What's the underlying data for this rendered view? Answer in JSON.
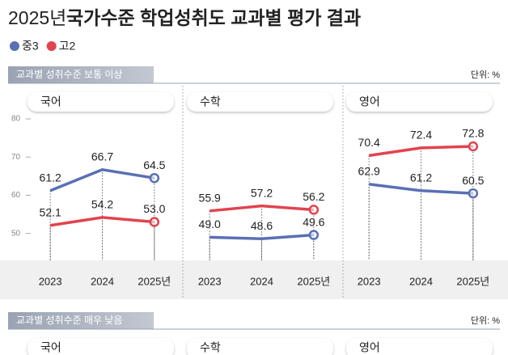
{
  "title_year": "2025년",
  "title": "국가수준 학업성취도 교과별 평가 결과",
  "sections": [
    {
      "title": "교과별 성취수준 보통 이상",
      "unit": "단위: %"
    },
    {
      "title": "교과별 성취수준 매우 낮음",
      "unit": "단위: %"
    }
  ],
  "lower_panels": [
    "국어",
    "수학",
    "영어"
  ],
  "chart_data": [
    {
      "type": "line",
      "title": "국어",
      "categories": [
        "2023",
        "2024",
        "2025년"
      ],
      "ylim": [
        44,
        80
      ],
      "yticks": [
        50,
        60,
        70,
        80
      ],
      "series": [
        {
          "name": "중3",
          "color": "#5a70b4",
          "values": [
            61.2,
            66.7,
            64.5
          ],
          "value_labels": [
            "61.2",
            "66.7",
            "64.5"
          ]
        },
        {
          "name": "고2",
          "color": "#e2434f",
          "values": [
            52.1,
            54.2,
            53
          ],
          "value_labels": [
            "52.1",
            "54.2",
            "53.0"
          ]
        }
      ]
    },
    {
      "type": "line",
      "title": "수학",
      "categories": [
        "2023",
        "2024",
        "2025년"
      ],
      "ylim": [
        44,
        80
      ],
      "series": [
        {
          "name": "중3",
          "color": "#5a70b4",
          "values": [
            49,
            48.6,
            49.6
          ],
          "value_labels": [
            "49.0",
            "48.6",
            "49.6"
          ]
        },
        {
          "name": "고2",
          "color": "#e2434f",
          "values": [
            55.9,
            57.2,
            56.2
          ],
          "value_labels": [
            "55.9",
            "57.2",
            "56.2"
          ]
        }
      ]
    },
    {
      "type": "line",
      "title": "영어",
      "categories": [
        "2023",
        "2024",
        "2025년"
      ],
      "ylim": [
        44,
        80
      ],
      "series": [
        {
          "name": "중3",
          "color": "#5a70b4",
          "values": [
            62.9,
            61.2,
            60.5
          ],
          "value_labels": [
            "62.9",
            "61.2",
            "60.5"
          ]
        },
        {
          "name": "고2",
          "color": "#e2434f",
          "values": [
            70.4,
            72.4,
            72.8
          ],
          "value_labels": [
            "70.4",
            "72.4",
            "72.8"
          ]
        }
      ]
    }
  ]
}
